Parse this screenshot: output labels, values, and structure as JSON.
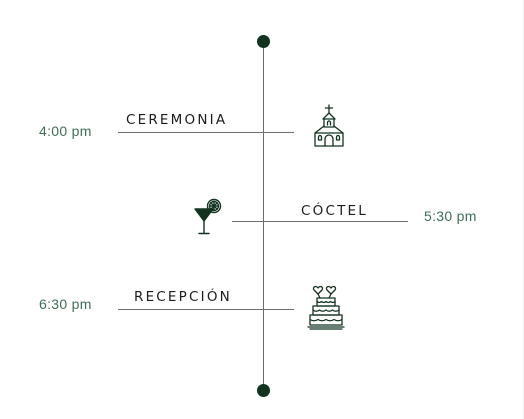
{
  "timeline": {
    "events": [
      {
        "label": "CEREMONIA",
        "time": "4:00 pm",
        "icon": "church-icon"
      },
      {
        "label": "CÓCTEL",
        "time": "5:30 pm",
        "icon": "cocktail-icon"
      },
      {
        "label": "RECEPCIÓN",
        "time": "6:30 pm",
        "icon": "wedding-cake-icon"
      }
    ]
  },
  "colors": {
    "accent": "#123320",
    "time_text": "#3f6e58",
    "line": "#6a6a6a"
  }
}
